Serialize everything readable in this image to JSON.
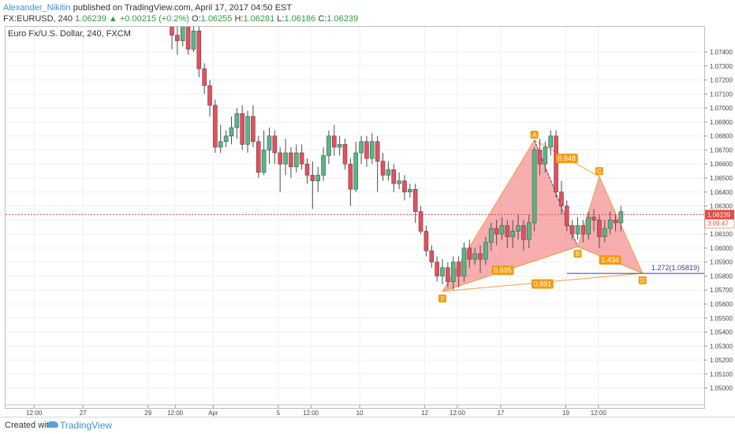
{
  "header": {
    "author": "Alexander_Nikitin",
    "published_text": "published on TradingView.com, April 17, 2017 04:50 EST"
  },
  "ohlc": {
    "symbol": "FX:EURUSD, 240",
    "last": "1.06239",
    "change_arrow": "▲",
    "change": "+0.00215 (+0.2%)",
    "open_label": "O:",
    "open": "1.06255",
    "high_label": "H:",
    "high": "1.06281",
    "low_label": "L:",
    "low": "1.06186",
    "close_label": "C:",
    "close": "1.06239"
  },
  "symbol_label": "Euro Fx/U.S. Dollar, 240, FXCM",
  "footer": {
    "created_with": "Created with",
    "brand": "TradingView"
  },
  "colors": {
    "up": "#53b987",
    "down": "#eb4d5c",
    "pattern_fill": "#f36c6c",
    "pattern_line": "#f0a040",
    "label_bg": "#f39c12",
    "price_line": "#e84c3d",
    "level_line": "#3b3b8f",
    "grid": "#eef0f3"
  },
  "chart_data": {
    "type": "candlestick",
    "y_axis": {
      "range": [
        1.0488,
        1.0758
      ],
      "ticks": [
        "1.07400",
        "1.07300",
        "1.07200",
        "1.07100",
        "1.07000",
        "1.06900",
        "1.06800",
        "1.06700",
        "1.06600",
        "1.06500",
        "1.06400",
        "1.06300",
        "1.06200",
        "1.06100",
        "1.06000",
        "1.05900",
        "1.05800",
        "1.05700",
        "1.05600",
        "1.05500",
        "1.05400",
        "1.05300",
        "1.05200",
        "1.05100",
        "1.05000"
      ]
    },
    "x_axis": {
      "ticks": [
        {
          "label": "12:00",
          "i": 2
        },
        {
          "label": "27",
          "i": 11
        },
        {
          "label": "29",
          "i": 23
        },
        {
          "label": "12:00",
          "i": 28
        },
        {
          "label": "Apr",
          "i": 35
        },
        {
          "label": "5",
          "i": 47
        },
        {
          "label": "12:00",
          "i": 53
        },
        {
          "label": "10",
          "i": 62
        },
        {
          "label": "12",
          "i": 74
        },
        {
          "label": "12:00",
          "i": 80
        },
        {
          "label": "17",
          "i": 88
        },
        {
          "label": "19",
          "i": 100
        },
        {
          "label": "12:00",
          "i": 106
        }
      ],
      "total_slots": 111
    },
    "candles": [
      [
        22,
        1.077,
        1.0752,
        1.078,
        1.0742
      ],
      [
        23,
        1.0752,
        1.0748,
        1.0762,
        1.0738
      ],
      [
        24,
        1.0748,
        1.076,
        1.0766,
        1.0744
      ],
      [
        25,
        1.076,
        1.0742,
        1.0764,
        1.0738
      ],
      [
        26,
        1.0742,
        1.0755,
        1.076,
        1.074
      ],
      [
        27,
        1.0755,
        1.0728,
        1.0758,
        1.0722
      ],
      [
        28,
        1.0728,
        1.0716,
        1.0732,
        1.071
      ],
      [
        29,
        1.0716,
        1.0702,
        1.072,
        1.0694
      ],
      [
        30,
        1.0702,
        1.0672,
        1.0706,
        1.0668
      ],
      [
        31,
        1.0672,
        1.0676,
        1.0688,
        1.0668
      ],
      [
        32,
        1.0676,
        1.068,
        1.0684,
        1.0672
      ],
      [
        33,
        1.068,
        1.0686,
        1.0694,
        1.0674
      ],
      [
        34,
        1.0686,
        1.0696,
        1.07,
        1.0678
      ],
      [
        35,
        1.0696,
        1.0674,
        1.0702,
        1.067
      ],
      [
        36,
        1.0674,
        1.0694,
        1.0698,
        1.0668
      ],
      [
        37,
        1.0694,
        1.0676,
        1.0702,
        1.0672
      ],
      [
        38,
        1.0676,
        1.0654,
        1.068,
        1.065
      ],
      [
        39,
        1.0654,
        1.067,
        1.0684,
        1.0652
      ],
      [
        40,
        1.067,
        1.068,
        1.0686,
        1.066
      ],
      [
        41,
        1.068,
        1.0668,
        1.0684,
        1.066
      ],
      [
        42,
        1.0668,
        1.066,
        1.0672,
        1.064
      ],
      [
        43,
        1.066,
        1.0668,
        1.0678,
        1.0652
      ],
      [
        44,
        1.0668,
        1.0658,
        1.0672,
        1.065
      ],
      [
        45,
        1.0658,
        1.0668,
        1.0674,
        1.0654
      ],
      [
        46,
        1.0668,
        1.066,
        1.0674,
        1.0656
      ],
      [
        47,
        1.066,
        1.0652,
        1.0664,
        1.0646
      ],
      [
        48,
        1.0652,
        1.0648,
        1.0662,
        1.0628
      ],
      [
        49,
        1.0648,
        1.0652,
        1.0658,
        1.064
      ],
      [
        50,
        1.0652,
        1.0666,
        1.0672,
        1.0648
      ],
      [
        51,
        1.0666,
        1.068,
        1.0684,
        1.066
      ],
      [
        52,
        1.068,
        1.0672,
        1.0688,
        1.0666
      ],
      [
        53,
        1.0672,
        1.0674,
        1.068,
        1.0666
      ],
      [
        54,
        1.0674,
        1.066,
        1.0678,
        1.0656
      ],
      [
        55,
        1.066,
        1.0642,
        1.0664,
        1.063
      ],
      [
        56,
        1.0642,
        1.0668,
        1.0676,
        1.064
      ],
      [
        57,
        1.0668,
        1.0676,
        1.068,
        1.066
      ],
      [
        58,
        1.0676,
        1.0664,
        1.068,
        1.0658
      ],
      [
        59,
        1.0664,
        1.0676,
        1.0682,
        1.066
      ],
      [
        60,
        1.0676,
        1.0662,
        1.068,
        1.064
      ],
      [
        61,
        1.0662,
        1.0652,
        1.0668,
        1.0648
      ],
      [
        62,
        1.0652,
        1.0656,
        1.0662,
        1.0648
      ],
      [
        63,
        1.0656,
        1.0646,
        1.066,
        1.064
      ],
      [
        64,
        1.0646,
        1.0648,
        1.0654,
        1.0642
      ],
      [
        65,
        1.0648,
        1.064,
        1.0652,
        1.0634
      ],
      [
        66,
        1.064,
        1.0642,
        1.0646,
        1.0636
      ],
      [
        67,
        1.0642,
        1.0626,
        1.0646,
        1.0618
      ],
      [
        68,
        1.0626,
        1.0612,
        1.063,
        1.061
      ],
      [
        69,
        1.0612,
        1.0598,
        1.0616,
        1.0594
      ],
      [
        70,
        1.0598,
        1.059,
        1.0602,
        1.0586
      ],
      [
        71,
        1.059,
        1.058,
        1.0594,
        1.0576
      ],
      [
        72,
        1.058,
        1.0586,
        1.0592,
        1.0574
      ],
      [
        73,
        1.0586,
        1.0576,
        1.059,
        1.0572
      ],
      [
        74,
        1.0576,
        1.059,
        1.0594,
        1.057
      ],
      [
        75,
        1.059,
        1.058,
        1.0594,
        1.0572
      ],
      [
        76,
        1.058,
        1.06,
        1.0604,
        1.0576
      ],
      [
        77,
        1.06,
        1.0592,
        1.0606,
        1.0586
      ],
      [
        78,
        1.0592,
        1.0596,
        1.06,
        1.0588
      ],
      [
        79,
        1.0596,
        1.0592,
        1.0602,
        1.0582
      ],
      [
        80,
        1.0592,
        1.0604,
        1.0608,
        1.0588
      ],
      [
        81,
        1.0604,
        1.0614,
        1.0618,
        1.0598
      ],
      [
        82,
        1.0614,
        1.061,
        1.062,
        1.0602
      ],
      [
        83,
        1.061,
        1.0616,
        1.0622,
        1.0606
      ],
      [
        84,
        1.0616,
        1.0608,
        1.062,
        1.06
      ],
      [
        85,
        1.0608,
        1.0612,
        1.062,
        1.06
      ],
      [
        86,
        1.0612,
        1.0616,
        1.0624,
        1.0606
      ],
      [
        87,
        1.0616,
        1.0606,
        1.062,
        1.0598
      ],
      [
        88,
        1.0606,
        1.0618,
        1.0624,
        1.06
      ],
      [
        89,
        1.0618,
        1.067,
        1.0672,
        1.0612
      ],
      [
        90,
        1.067,
        1.066,
        1.0678,
        1.0652
      ],
      [
        91,
        1.066,
        1.0672,
        1.0676,
        1.0654
      ],
      [
        92,
        1.0672,
        1.068,
        1.0684,
        1.0666
      ],
      [
        93,
        1.068,
        1.064,
        1.0684,
        1.0636
      ],
      [
        94,
        1.064,
        1.063,
        1.0648,
        1.0624
      ],
      [
        95,
        1.063,
        1.0616,
        1.0634,
        1.0612
      ],
      [
        96,
        1.0616,
        1.061,
        1.062,
        1.0606
      ],
      [
        97,
        1.061,
        1.0616,
        1.0622,
        1.0606
      ],
      [
        98,
        1.0616,
        1.061,
        1.062,
        1.0604
      ],
      [
        99,
        1.061,
        1.0622,
        1.0626,
        1.0606
      ],
      [
        100,
        1.0622,
        1.062,
        1.0628,
        1.0612
      ],
      [
        101,
        1.062,
        1.0608,
        1.0624,
        1.06
      ],
      [
        102,
        1.0608,
        1.0614,
        1.062,
        1.0604
      ],
      [
        103,
        1.0614,
        1.062,
        1.0626,
        1.061
      ],
      [
        104,
        1.062,
        1.0618,
        1.0624,
        1.0612
      ],
      [
        105,
        1.0618,
        1.0626,
        1.063,
        1.0612
      ]
    ],
    "harmonic": {
      "points": [
        {
          "label": "X",
          "i": 72,
          "price": 1.0569
        },
        {
          "label": "A",
          "i": 89,
          "price": 1.0677
        },
        {
          "label": "B",
          "i": 97,
          "price": 1.0601
        },
        {
          "label": "C",
          "i": 101,
          "price": 1.0651
        },
        {
          "label": "D",
          "i": 109,
          "price": 1.0582
        }
      ],
      "ratios": [
        {
          "text": "0.648",
          "between": [
            "A",
            "C"
          ]
        },
        {
          "text": "0.695",
          "between": [
            "X",
            "B"
          ]
        },
        {
          "text": "1.434",
          "between": [
            "B",
            "D"
          ]
        },
        {
          "text": "0.891",
          "between": [
            "X",
            "D"
          ]
        }
      ],
      "extension_label": "1.272(1.05819)",
      "extension_price": 1.05819
    },
    "current_price": {
      "price": 1.06239,
      "label": "1.06239",
      "countdown": "3:09:47"
    }
  }
}
